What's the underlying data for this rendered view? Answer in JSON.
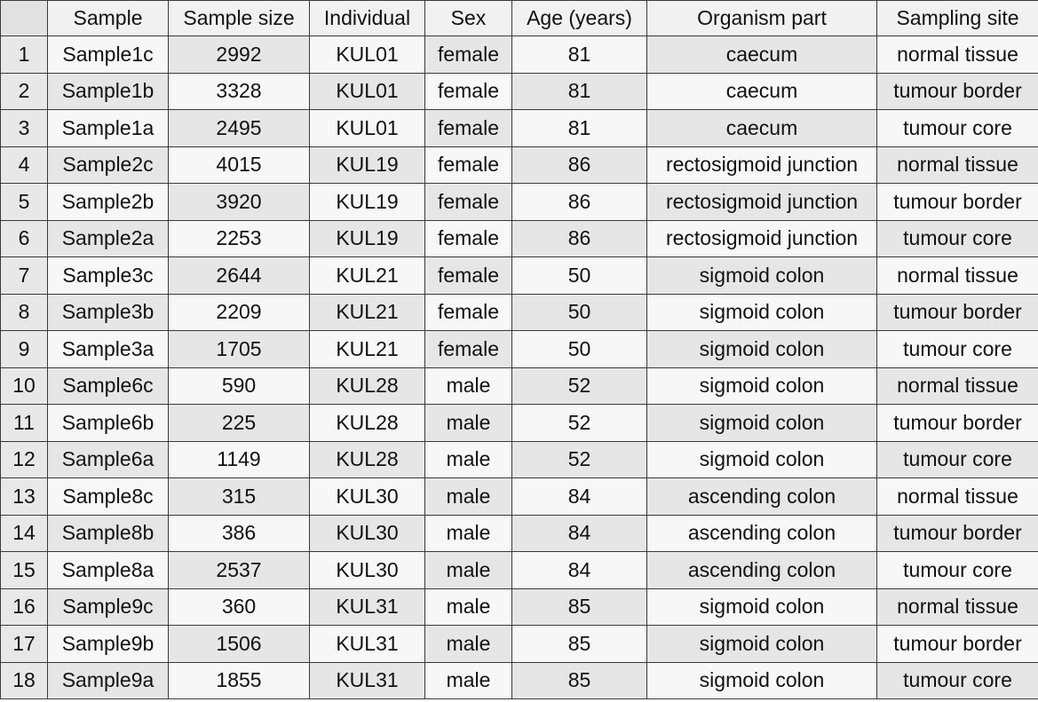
{
  "table": {
    "columns": [
      "",
      "Sample",
      "Sample size",
      "Individual",
      "Sex",
      "Age (years)",
      "Organism part",
      "Sampling site"
    ],
    "rows": [
      [
        "1",
        "Sample1c",
        "2992",
        "KUL01",
        "female",
        "81",
        "caecum",
        "normal tissue"
      ],
      [
        "2",
        "Sample1b",
        "3328",
        "KUL01",
        "female",
        "81",
        "caecum",
        "tumour border"
      ],
      [
        "3",
        "Sample1a",
        "2495",
        "KUL01",
        "female",
        "81",
        "caecum",
        "tumour core"
      ],
      [
        "4",
        "Sample2c",
        "4015",
        "KUL19",
        "female",
        "86",
        "rectosigmoid junction",
        "normal tissue"
      ],
      [
        "5",
        "Sample2b",
        "3920",
        "KUL19",
        "female",
        "86",
        "rectosigmoid junction",
        "tumour border"
      ],
      [
        "6",
        "Sample2a",
        "2253",
        "KUL19",
        "female",
        "86",
        "rectosigmoid junction",
        "tumour core"
      ],
      [
        "7",
        "Sample3c",
        "2644",
        "KUL21",
        "female",
        "50",
        "sigmoid colon",
        "normal tissue"
      ],
      [
        "8",
        "Sample3b",
        "2209",
        "KUL21",
        "female",
        "50",
        "sigmoid colon",
        "tumour border"
      ],
      [
        "9",
        "Sample3a",
        "1705",
        "KUL21",
        "female",
        "50",
        "sigmoid colon",
        "tumour core"
      ],
      [
        "10",
        "Sample6c",
        "590",
        "KUL28",
        "male",
        "52",
        "sigmoid colon",
        "normal tissue"
      ],
      [
        "11",
        "Sample6b",
        "225",
        "KUL28",
        "male",
        "52",
        "sigmoid colon",
        "tumour border"
      ],
      [
        "12",
        "Sample6a",
        "1149",
        "KUL28",
        "male",
        "52",
        "sigmoid colon",
        "tumour core"
      ],
      [
        "13",
        "Sample8c",
        "315",
        "KUL30",
        "male",
        "84",
        "ascending colon",
        "normal tissue"
      ],
      [
        "14",
        "Sample8b",
        "386",
        "KUL30",
        "male",
        "84",
        "ascending colon",
        "tumour border"
      ],
      [
        "15",
        "Sample8a",
        "2537",
        "KUL30",
        "male",
        "84",
        "ascending colon",
        "tumour core"
      ],
      [
        "16",
        "Sample9c",
        "360",
        "KUL31",
        "male",
        "85",
        "sigmoid colon",
        "normal tissue"
      ],
      [
        "17",
        "Sample9b",
        "1506",
        "KUL31",
        "male",
        "85",
        "sigmoid colon",
        "tumour border"
      ],
      [
        "18",
        "Sample9a",
        "1855",
        "KUL31",
        "male",
        "85",
        "sigmoid colon",
        "tumour core"
      ]
    ]
  }
}
